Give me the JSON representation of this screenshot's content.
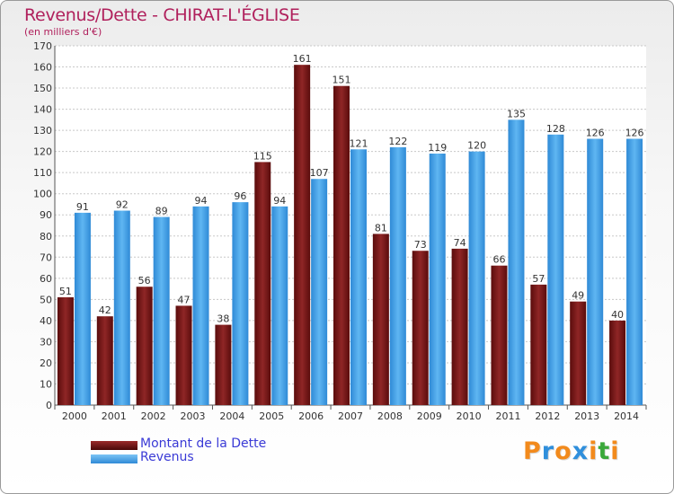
{
  "title": "Revenus/Dette - CHIRAT-L'ÉGLISE",
  "subtitle": "(en milliers d'€)",
  "legend": [
    {
      "label": "Montant de la Dette",
      "color": "#6e1212"
    },
    {
      "label": "Revenus",
      "color": "#3f9fe6"
    }
  ],
  "logo": {
    "letters": [
      "P",
      "r",
      "o",
      "x",
      "i",
      "t",
      "i"
    ],
    "colors": [
      "#f28a1c",
      "#2f8fdc",
      "#f28a1c",
      "#2f8fdc",
      "#f28a1c",
      "#3aa83a",
      "#f28a1c"
    ]
  },
  "chart_data": {
    "type": "bar",
    "title": "Revenus/Dette - CHIRAT-L'ÉGLISE",
    "ylabel": "(en milliers d'€)",
    "categories": [
      "2000",
      "2001",
      "2002",
      "2003",
      "2004",
      "2005",
      "2006",
      "2007",
      "2008",
      "2009",
      "2010",
      "2011",
      "2012",
      "2013",
      "2014"
    ],
    "series": [
      {
        "name": "Montant de la Dette",
        "color": "#6e1212",
        "values": [
          51,
          42,
          56,
          47,
          38,
          115,
          161,
          151,
          81,
          73,
          74,
          66,
          57,
          49,
          40
        ]
      },
      {
        "name": "Revenus",
        "color": "#3f9fe6",
        "values": [
          91,
          92,
          89,
          94,
          96,
          94,
          107,
          121,
          122,
          119,
          120,
          135,
          128,
          126,
          126
        ]
      }
    ],
    "ylim": [
      0,
      170
    ],
    "ytick_step": 10,
    "grid": true,
    "legend_position": "bottom-left"
  }
}
